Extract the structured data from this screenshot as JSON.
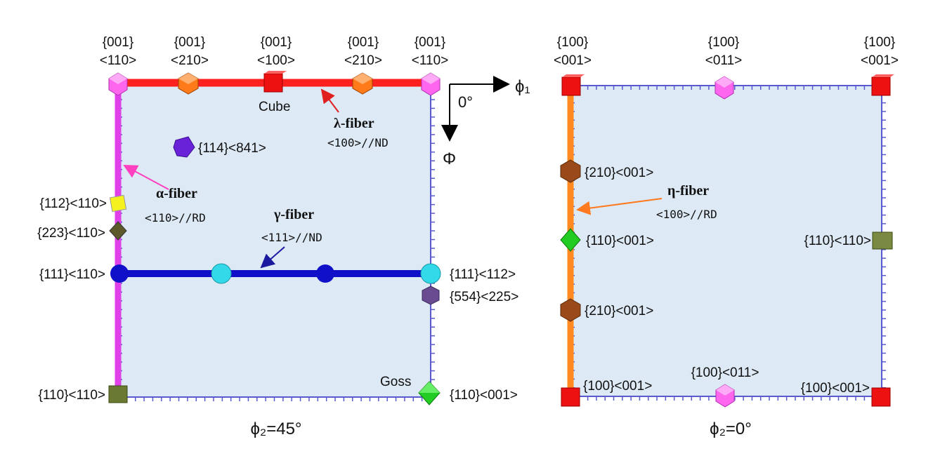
{
  "left": {
    "top_labels": [
      {
        "line1": "{001}",
        "line2": "<110>"
      },
      {
        "line1": "{001}",
        "line2": "<210>"
      },
      {
        "line1": "{001}",
        "line2": "<100>"
      },
      {
        "line1": "{001}",
        "line2": "<210>"
      },
      {
        "line1": "{001}",
        "line2": "<110>"
      }
    ],
    "cube_label": "Cube",
    "goss_label": "Goss",
    "lambda_fiber": {
      "name": "λ-fiber",
      "desc": "<100>//ND"
    },
    "alpha_fiber": {
      "name": "α-fiber",
      "desc": "<110>//RD"
    },
    "gamma_fiber": {
      "name": "γ-fiber",
      "desc": "<111>//ND"
    },
    "orientation_114": "{114}<841>",
    "left_labels": [
      "{112}<110>",
      "{223}<110>",
      "{111}<110>",
      "{110}<110>"
    ],
    "right_labels": [
      "{111}<112>",
      "{554}<225>",
      "{110}<001>"
    ],
    "caption": "ϕ₂=45°"
  },
  "axes": {
    "origin": "0°",
    "x": "ϕ₁",
    "y": "Φ"
  },
  "right": {
    "top_labels": [
      {
        "line1": "{100}",
        "line2": "<001>"
      },
      {
        "line1": "{100}",
        "line2": "<011>"
      },
      {
        "line1": "{100}",
        "line2": "<001>"
      }
    ],
    "eta_fiber": {
      "name": "η-fiber",
      "desc": "<100>//RD"
    },
    "inner_labels": [
      "{210}<001>",
      "{110}<001>",
      "{210}<001>"
    ],
    "right_edge_label": "{110}<110>",
    "bottom_labels": [
      "{100}<001>",
      "{100}<011>",
      "{100}<001>"
    ],
    "caption": "ϕ₂=0°"
  },
  "colors": {
    "panel_fill": "#dde9f4",
    "border": "#5a5ad0",
    "lambda": "#ff2020",
    "alpha": "#e040e8",
    "gamma": "#1010c8",
    "eta": "#ff8a20"
  }
}
